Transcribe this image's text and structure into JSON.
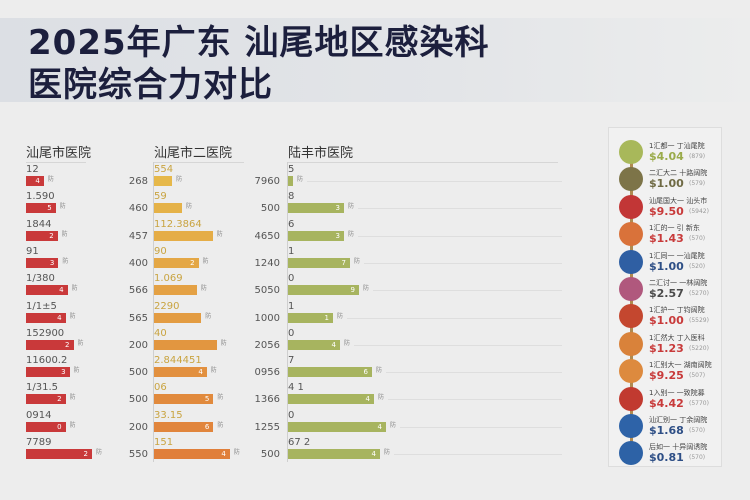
{
  "title": {
    "line1": "2025年广东 汕尾地区感染科",
    "line2": "医院综合力对比"
  },
  "columns": [
    {
      "header": "汕尾市医院",
      "color": "#c9393a"
    },
    {
      "header": "汕尾市二医院",
      "color_start": "#e6b84a",
      "color_end": "#e07f3a"
    },
    {
      "header": "陆丰市医院",
      "color": "#a7b45f"
    }
  ],
  "axis_labels": {
    "between_1_2": [
      "268",
      "460",
      "457",
      "400",
      "566",
      "565",
      "200",
      "500",
      "500",
      "200",
      "550"
    ],
    "between_2_3": [
      "7960",
      "500",
      "4650",
      "1240",
      "5050",
      "1000",
      "2056",
      "0956",
      "1366",
      "1255",
      "500"
    ]
  },
  "chart_data": {
    "type": "bar",
    "title": "2025年广东 汕尾地区感染科医院综合力对比",
    "xlabel": "",
    "ylabel": "",
    "orientation": "horizontal",
    "series": [
      {
        "name": "汕尾市医院",
        "labels": [
          "12",
          "1.590",
          "1844",
          "91",
          "1/380",
          "1/1±5",
          "152900",
          "11600.2",
          "1/31.5",
          "0914",
          "7789"
        ],
        "values": [
          27,
          45,
          48,
          49,
          63,
          60,
          72,
          66,
          60,
          60,
          100
        ],
        "inner_tags": [
          "4",
          "5",
          "2",
          "3",
          "4",
          "4",
          "2",
          "3",
          "2",
          "0",
          "2"
        ]
      },
      {
        "name": "汕尾市二医院",
        "labels": [
          "554",
          "59",
          "112.3864",
          "90",
          "1.069",
          "2290",
          "40",
          "2.844451",
          "06",
          "33.15",
          "151"
        ],
        "values": [
          55,
          85,
          178,
          135,
          130,
          143,
          190,
          160,
          180,
          180,
          230
        ],
        "inner_tags": [
          "",
          "",
          "",
          "2",
          "",
          "",
          "",
          "4",
          "5",
          "6",
          "4"
        ]
      },
      {
        "name": "陆丰市医院",
        "labels": [
          "5",
          "8",
          "6",
          "1",
          "0",
          "1",
          "0",
          "7",
          "4 1",
          "0",
          "67 2"
        ],
        "values": [
          5,
          56,
          56,
          62,
          71,
          45,
          52,
          84,
          86,
          98,
          92
        ],
        "inner_tags": [
          "",
          "3",
          "3",
          "7",
          "9",
          "1",
          "4",
          "6",
          "4",
          "4",
          "4"
        ]
      }
    ]
  },
  "legend": {
    "items": [
      {
        "name": "1汇都一 丁汕尾院",
        "price": "$4.04",
        "sub": "(879)",
        "color": "#a8b85a",
        "price_color": "#9aab4a"
      },
      {
        "name": "二汇大二 十路阔院",
        "price": "$1.00",
        "sub": "(579)",
        "color": "#7d7448",
        "price_color": "#6f6a44"
      },
      {
        "name": "汕尾国大一 汕头市",
        "price": "$9.50",
        "sub": "(5942)",
        "color": "#c23636",
        "price_color": "#c83a3a"
      },
      {
        "name": "1汇的一 引 新东",
        "price": "$1.43",
        "sub": "(570)",
        "color": "#d9723a",
        "price_color": "#c83a3a"
      },
      {
        "name": "1汇同一 一汕尾院",
        "price": "$1.00",
        "sub": "(520)",
        "color": "#2f5fa3",
        "price_color": "#2e4f86"
      },
      {
        "name": "二汇讨一 一林阔院",
        "price": "$2.57",
        "sub": "(5270)",
        "color": "#b0587d",
        "price_color": "#4a4a4a"
      },
      {
        "name": "1汇护一 丁钧阔院",
        "price": "$1.00",
        "sub": "(5529)",
        "color": "#c4472f",
        "price_color": "#c83a3a"
      },
      {
        "name": "1汇然大 丁入医科",
        "price": "$1.23",
        "sub": "(5220)",
        "color": "#d9823a",
        "price_color": "#c83a3a"
      },
      {
        "name": "1汇别大一 湖南阔院",
        "price": "$9.25",
        "sub": "(507)",
        "color": "#dd8a3e",
        "price_color": "#c83a3a"
      },
      {
        "name": "1入别一 一致院募",
        "price": "$4.42",
        "sub": "(5770)",
        "color": "#c13a30",
        "price_color": "#c83a3a"
      },
      {
        "name": "汕汇别一 丁余阔院",
        "price": "$1.68",
        "sub": "(570)",
        "color": "#2e63a8",
        "price_color": "#2e4f86"
      },
      {
        "name": "后如一 十异阔诱院",
        "price": "$0.81",
        "sub": "(570)",
        "color": "#2d62a6",
        "price_color": "#2e4f86"
      }
    ]
  }
}
